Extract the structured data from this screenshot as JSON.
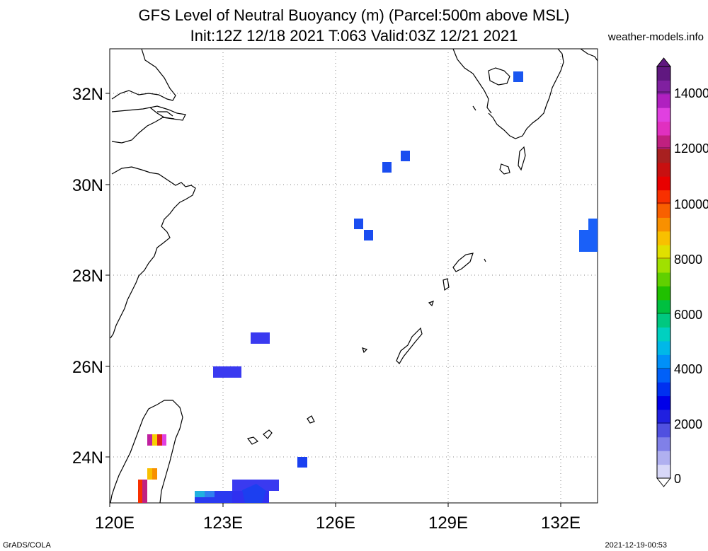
{
  "title": {
    "line1": "GFS Level of Neutral Buoyancy (m) (Parcel:500m above MSL)",
    "line2": "Init:12Z 12/18 2021 T:063 Valid:03Z 12/21 2021"
  },
  "site": "weather-models.info",
  "footer": {
    "left": "GrADS/COLA",
    "right": "2021-12-19-00:53"
  },
  "map": {
    "lon_range": [
      120,
      133
    ],
    "lat_range": [
      23,
      33
    ],
    "lat_labels": [
      "24N",
      "26N",
      "28N",
      "30N",
      "32N"
    ],
    "lon_labels": [
      "120E",
      "123E",
      "126E",
      "129E",
      "132E"
    ]
  },
  "colorbar": {
    "labels": [
      "0",
      "2000",
      "4000",
      "6000",
      "8000",
      "10000",
      "12000",
      "14000"
    ],
    "colors": [
      "#d8d8f8",
      "#b0b0f0",
      "#8080e8",
      "#5050e0",
      "#2020e0",
      "#0000e8",
      "#0030f0",
      "#0060f8",
      "#0090f8",
      "#00b8e8",
      "#00d0c0",
      "#00c880",
      "#00c040",
      "#20c000",
      "#60d000",
      "#a0e000",
      "#e0e000",
      "#f8c000",
      "#f89000",
      "#f86000",
      "#f83000",
      "#e80000",
      "#c81010",
      "#a82020",
      "#c02080",
      "#e030c0",
      "#e040e0",
      "#b020c0",
      "#8020a0",
      "#601880"
    ]
  }
}
